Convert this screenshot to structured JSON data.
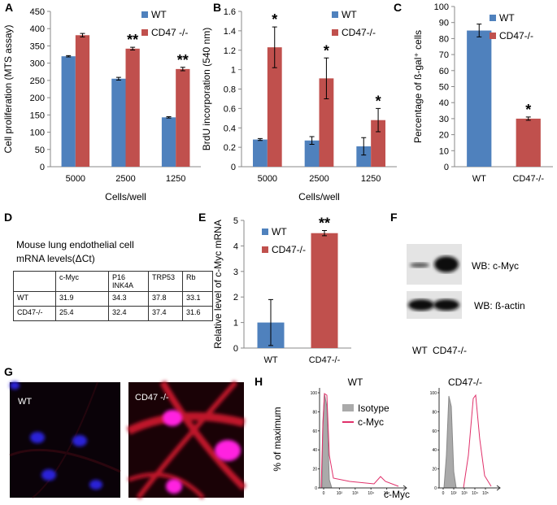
{
  "chart_data": [
    {
      "type": "bar",
      "label": "A",
      "y_label": "Cell proliferation (MTS assay)",
      "x_label": "Cells/well",
      "categories": [
        "5000",
        "2500",
        "1250"
      ],
      "series": [
        {
          "name": "WT",
          "color": "#4f81bd",
          "values": [
            320,
            255,
            143
          ],
          "errors": [
            2,
            4,
            2
          ]
        },
        {
          "name": "CD47 -/-",
          "color": "#c0504d",
          "values": [
            381,
            342,
            283
          ],
          "errors": [
            5,
            4,
            5
          ],
          "significance": [
            null,
            "**",
            "**"
          ]
        }
      ],
      "ylim": [
        0,
        450
      ],
      "yticks": [
        0,
        50,
        100,
        150,
        200,
        250,
        300,
        350,
        400,
        450
      ]
    },
    {
      "type": "bar",
      "label": "B",
      "y_label": "BrdU incorporation (540 nm)",
      "x_label": "Cells/well",
      "categories": [
        "5000",
        "2500",
        "1250"
      ],
      "series": [
        {
          "name": "WT",
          "color": "#4f81bd",
          "values": [
            0.28,
            0.27,
            0.21
          ],
          "errors": [
            0.01,
            0.04,
            0.09
          ]
        },
        {
          "name": "CD47-/-",
          "color": "#c0504d",
          "values": [
            1.23,
            0.91,
            0.48
          ],
          "errors": [
            0.21,
            0.21,
            0.12
          ],
          "significance": [
            "*",
            "*",
            "*"
          ]
        }
      ],
      "ylim": [
        0,
        1.6
      ],
      "yticks": [
        0,
        0.2,
        0.4,
        0.6,
        0.8,
        1,
        1.2,
        1.4,
        1.6
      ]
    },
    {
      "type": "bar",
      "label": "C",
      "y_label": "Percentage of ß-gal⁺ cells",
      "categories": [
        "WT",
        "CD47-/-"
      ],
      "values": [
        85,
        30
      ],
      "errors": [
        4,
        1
      ],
      "colors": [
        "#4f81bd",
        "#c0504d"
      ],
      "legend": [
        "WT",
        "CD47-/-"
      ],
      "significance": [
        null,
        "*"
      ],
      "ylim": [
        0,
        100
      ],
      "yticks": [
        0,
        10,
        20,
        30,
        40,
        50,
        60,
        70,
        80,
        90,
        100
      ]
    },
    {
      "type": "bar",
      "label": "E",
      "y_label": "Relative level of c-Myc mRNA",
      "categories": [
        "WT",
        "CD47-/-"
      ],
      "values": [
        1,
        4.5
      ],
      "errors": [
        0.9,
        0.1
      ],
      "colors": [
        "#4f81bd",
        "#c0504d"
      ],
      "legend": [
        "WT",
        "CD47-/-"
      ],
      "significance": [
        null,
        "**"
      ],
      "ylim": [
        0,
        5
      ],
      "yticks": [
        0,
        1,
        2,
        3,
        4,
        5
      ]
    }
  ],
  "table_panel": {
    "label": "D",
    "title": [
      "Mouse lung endothelial cell",
      "mRNA levels(ΔCt)"
    ],
    "header": [
      "c-Myc",
      "P16 INK4A",
      "TRP53",
      "Rb"
    ],
    "rows": [
      [
        "WT",
        "31.9",
        "34.3",
        "37.8",
        "33.1"
      ],
      [
        "CD47-/-",
        "25.4",
        "32.4",
        "37.4",
        "31.6"
      ]
    ]
  },
  "western_blot": {
    "label": "F",
    "bands": [
      "WB: c-Myc",
      "WB:  ß-actin"
    ],
    "lanes": [
      "WT",
      "CD47-/-"
    ]
  },
  "microscopy": {
    "label": "G",
    "images": [
      "WT",
      "CD47 -/-"
    ]
  },
  "flow_cytometry": {
    "label": "H",
    "panels": [
      "WT",
      "CD47-/-"
    ],
    "y_label": "% of maximum",
    "x_label": "c-Myc",
    "legend": [
      "Isotype",
      "c-Myc"
    ],
    "yticks": [
      0,
      20,
      40,
      60,
      80,
      100
    ],
    "xticks": [
      "0",
      "10²",
      "10³",
      "10⁴",
      "10⁵"
    ]
  }
}
